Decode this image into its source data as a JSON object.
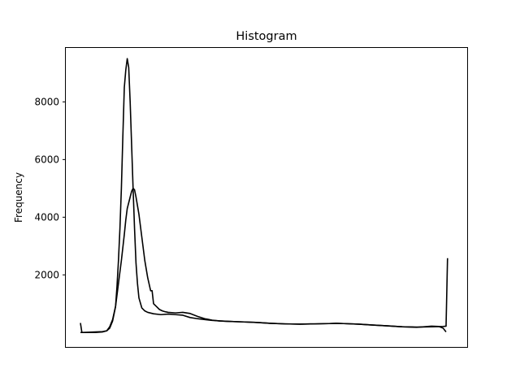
{
  "chart_data": {
    "type": "line",
    "title": "Histogram",
    "xlabel": "",
    "ylabel": "Frequency",
    "ylim": [
      -500,
      9900
    ],
    "xlim": [
      -10,
      265
    ],
    "yticks": [
      2000,
      4000,
      6000,
      8000
    ],
    "xticks_visible": false,
    "grid": false,
    "legend": "none",
    "line_color": "#000000",
    "series": [
      {
        "values": [
          [
            0,
            330
          ],
          [
            1,
            0
          ],
          [
            5,
            0
          ],
          [
            10,
            0
          ],
          [
            15,
            20
          ],
          [
            18,
            60
          ],
          [
            20,
            200
          ],
          [
            22,
            450
          ],
          [
            24,
            900
          ],
          [
            26,
            1700
          ],
          [
            28,
            2500
          ],
          [
            30,
            3400
          ],
          [
            31,
            3900
          ],
          [
            32,
            4300
          ],
          [
            34,
            4700
          ],
          [
            35,
            4900
          ],
          [
            36,
            5000
          ],
          [
            37,
            4950
          ],
          [
            38,
            4700
          ],
          [
            40,
            4100
          ],
          [
            42,
            3300
          ],
          [
            44,
            2500
          ],
          [
            46,
            1900
          ],
          [
            48,
            1450
          ],
          [
            49,
            1450
          ],
          [
            50,
            1000
          ],
          [
            52,
            900
          ],
          [
            54,
            800
          ],
          [
            56,
            750
          ],
          [
            58,
            720
          ],
          [
            60,
            700
          ],
          [
            65,
            680
          ],
          [
            70,
            700
          ],
          [
            75,
            660
          ],
          [
            80,
            560
          ],
          [
            85,
            480
          ],
          [
            90,
            430
          ],
          [
            95,
            400
          ],
          [
            100,
            390
          ],
          [
            110,
            370
          ],
          [
            120,
            350
          ],
          [
            130,
            320
          ],
          [
            140,
            300
          ],
          [
            150,
            290
          ],
          [
            160,
            300
          ],
          [
            170,
            310
          ],
          [
            175,
            320
          ],
          [
            180,
            310
          ],
          [
            190,
            290
          ],
          [
            200,
            260
          ],
          [
            210,
            230
          ],
          [
            220,
            200
          ],
          [
            230,
            190
          ],
          [
            240,
            200
          ],
          [
            248,
            210
          ],
          [
            250,
            220
          ],
          [
            251,
            2580
          ]
        ]
      },
      {
        "values": [
          [
            0,
            0
          ],
          [
            10,
            20
          ],
          [
            15,
            30
          ],
          [
            18,
            60
          ],
          [
            20,
            150
          ],
          [
            22,
            400
          ],
          [
            24,
            900
          ],
          [
            25,
            1600
          ],
          [
            26,
            2500
          ],
          [
            27,
            3600
          ],
          [
            28,
            5000
          ],
          [
            29,
            6800
          ],
          [
            30,
            8500
          ],
          [
            31,
            9100
          ],
          [
            32,
            9500
          ],
          [
            33,
            9200
          ],
          [
            34,
            8000
          ],
          [
            35,
            6500
          ],
          [
            36,
            5000
          ],
          [
            37,
            3600
          ],
          [
            38,
            2400
          ],
          [
            39,
            1700
          ],
          [
            40,
            1200
          ],
          [
            42,
            850
          ],
          [
            44,
            750
          ],
          [
            46,
            700
          ],
          [
            50,
            650
          ],
          [
            55,
            620
          ],
          [
            60,
            640
          ],
          [
            65,
            620
          ],
          [
            70,
            600
          ],
          [
            75,
            520
          ],
          [
            80,
            480
          ],
          [
            85,
            450
          ],
          [
            90,
            420
          ],
          [
            100,
            390
          ],
          [
            110,
            370
          ],
          [
            120,
            350
          ],
          [
            130,
            320
          ],
          [
            140,
            300
          ],
          [
            150,
            290
          ],
          [
            160,
            300
          ],
          [
            170,
            310
          ],
          [
            175,
            320
          ],
          [
            180,
            310
          ],
          [
            190,
            290
          ],
          [
            200,
            260
          ],
          [
            210,
            230
          ],
          [
            220,
            200
          ],
          [
            230,
            180
          ],
          [
            240,
            220
          ],
          [
            245,
            210
          ],
          [
            248,
            150
          ],
          [
            250,
            20
          ]
        ]
      }
    ]
  }
}
